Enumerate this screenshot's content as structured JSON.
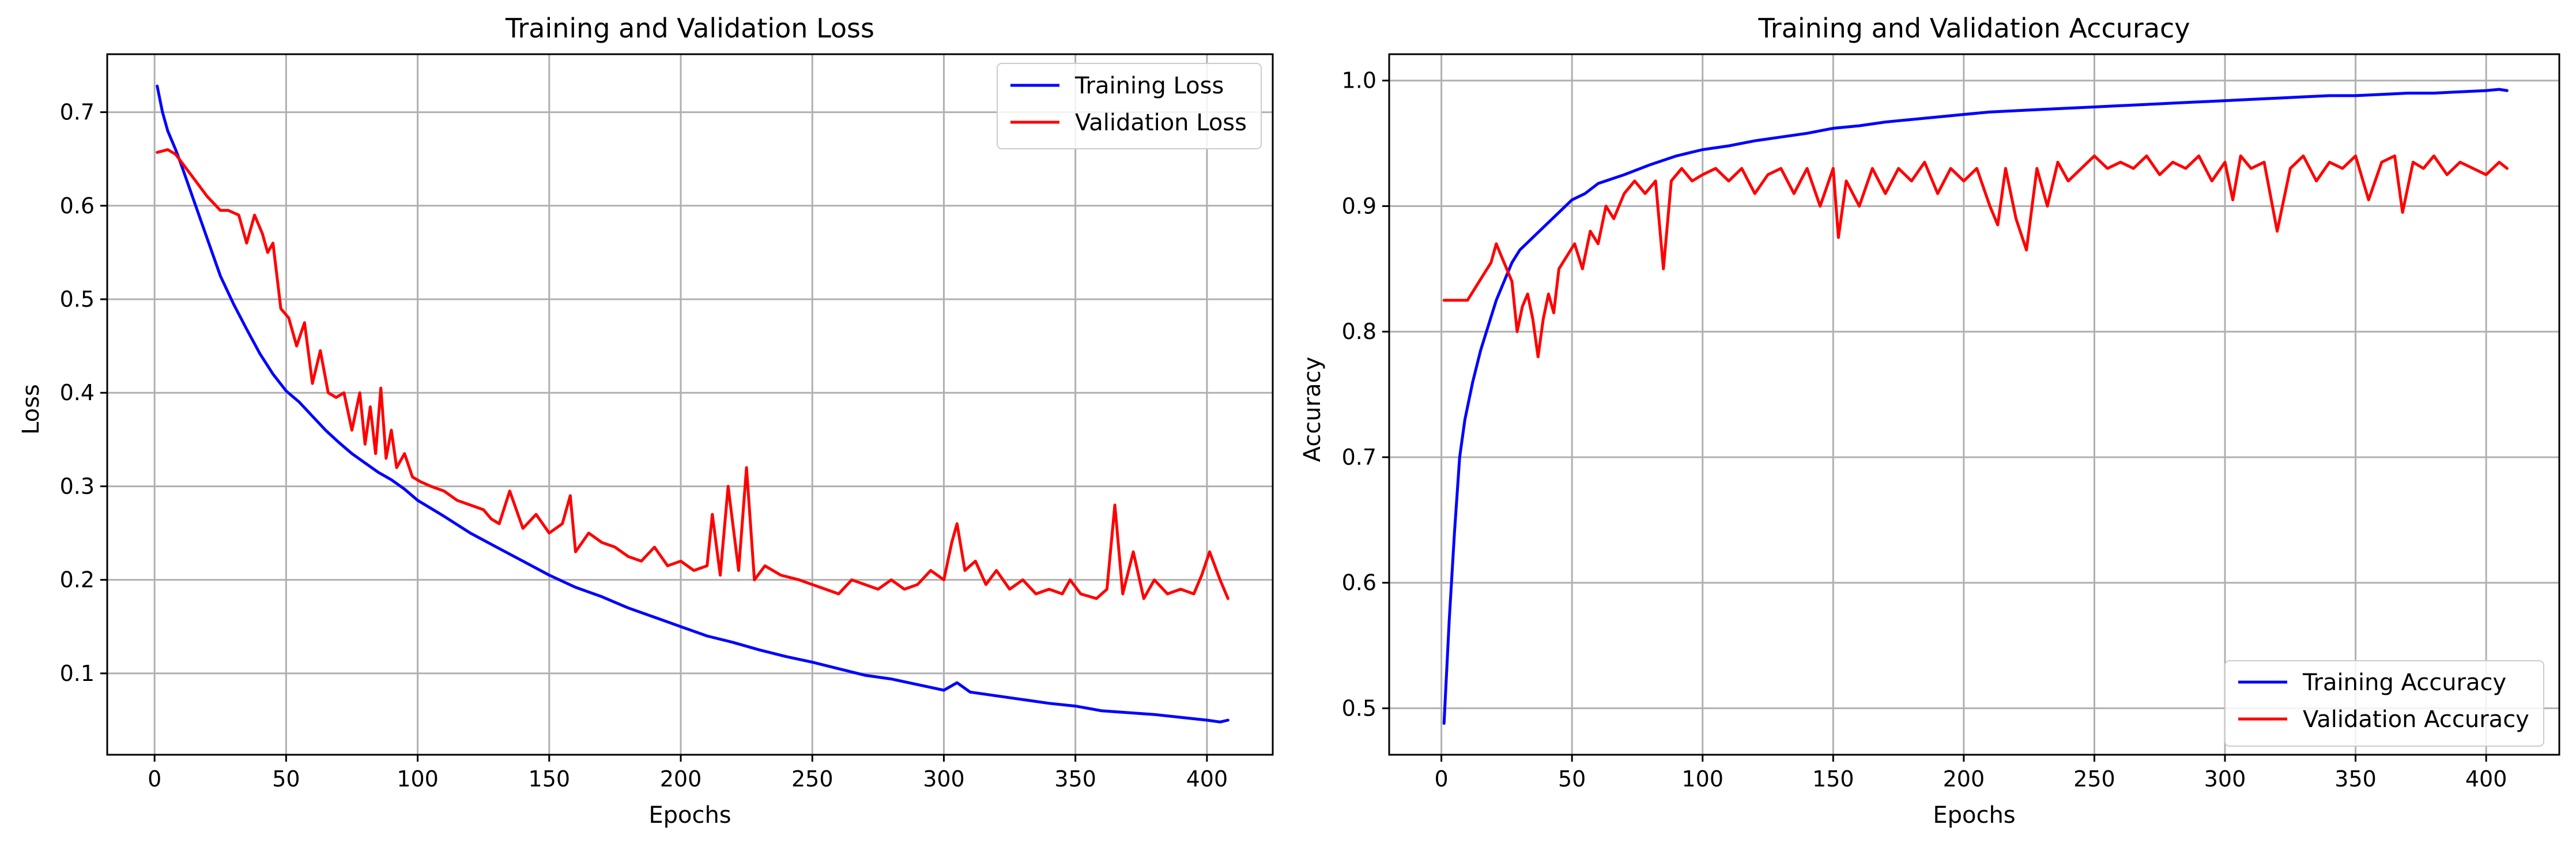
{
  "chart_data": [
    {
      "type": "line",
      "title": "Training and Validation Loss",
      "xlabel": "Epochs",
      "ylabel": "Loss",
      "xlim": [
        -18,
        425
      ],
      "ylim": [
        0.013,
        0.762
      ],
      "xticks": [
        0,
        50,
        100,
        150,
        200,
        250,
        300,
        350,
        400
      ],
      "yticks": [
        0.1,
        0.2,
        0.3,
        0.4,
        0.5,
        0.6,
        0.7
      ],
      "ytick_labels": [
        "0.1",
        "0.2",
        "0.3",
        "0.4",
        "0.5",
        "0.6",
        "0.7"
      ],
      "grid": true,
      "legend_position": "top-right",
      "series": [
        {
          "name": "Training Loss",
          "color": "#0000ff",
          "x": [
            1,
            3,
            5,
            8,
            10,
            15,
            20,
            25,
            30,
            35,
            40,
            45,
            50,
            55,
            60,
            65,
            70,
            75,
            80,
            85,
            90,
            95,
            100,
            110,
            120,
            130,
            140,
            150,
            160,
            170,
            180,
            190,
            200,
            210,
            220,
            230,
            240,
            250,
            260,
            270,
            280,
            290,
            300,
            305,
            310,
            320,
            330,
            340,
            350,
            360,
            370,
            380,
            390,
            400,
            405,
            408
          ],
          "y": [
            0.728,
            0.7,
            0.68,
            0.66,
            0.645,
            0.605,
            0.565,
            0.525,
            0.495,
            0.468,
            0.442,
            0.42,
            0.402,
            0.39,
            0.375,
            0.36,
            0.347,
            0.335,
            0.325,
            0.315,
            0.307,
            0.297,
            0.285,
            0.268,
            0.25,
            0.235,
            0.22,
            0.205,
            0.192,
            0.182,
            0.17,
            0.16,
            0.15,
            0.14,
            0.133,
            0.125,
            0.118,
            0.112,
            0.105,
            0.098,
            0.094,
            0.088,
            0.082,
            0.09,
            0.08,
            0.076,
            0.072,
            0.068,
            0.065,
            0.06,
            0.058,
            0.056,
            0.053,
            0.05,
            0.048,
            0.05
          ]
        },
        {
          "name": "Validation Loss",
          "color": "#ff0000",
          "x": [
            1,
            5,
            8,
            12,
            16,
            20,
            25,
            28,
            32,
            35,
            38,
            41,
            43,
            45,
            48,
            51,
            54,
            57,
            60,
            63,
            66,
            69,
            72,
            75,
            78,
            80,
            82,
            84,
            86,
            88,
            90,
            92,
            95,
            98,
            101,
            105,
            110,
            115,
            120,
            125,
            128,
            131,
            135,
            140,
            145,
            150,
            155,
            158,
            160,
            165,
            170,
            175,
            180,
            185,
            190,
            195,
            200,
            205,
            210,
            212,
            215,
            218,
            222,
            225,
            228,
            232,
            238,
            245,
            250,
            255,
            260,
            265,
            270,
            275,
            280,
            285,
            290,
            295,
            300,
            303,
            305,
            308,
            312,
            316,
            320,
            325,
            330,
            335,
            340,
            345,
            348,
            352,
            358,
            362,
            365,
            368,
            372,
            376,
            380,
            385,
            390,
            395,
            398,
            401,
            405,
            408
          ],
          "y": [
            0.657,
            0.66,
            0.655,
            0.64,
            0.625,
            0.61,
            0.595,
            0.595,
            0.59,
            0.56,
            0.59,
            0.57,
            0.55,
            0.56,
            0.49,
            0.48,
            0.45,
            0.475,
            0.41,
            0.445,
            0.4,
            0.395,
            0.4,
            0.36,
            0.4,
            0.345,
            0.385,
            0.335,
            0.405,
            0.33,
            0.36,
            0.32,
            0.335,
            0.31,
            0.305,
            0.3,
            0.295,
            0.285,
            0.28,
            0.275,
            0.265,
            0.26,
            0.295,
            0.255,
            0.27,
            0.25,
            0.26,
            0.29,
            0.23,
            0.25,
            0.24,
            0.235,
            0.225,
            0.22,
            0.235,
            0.215,
            0.22,
            0.21,
            0.215,
            0.27,
            0.205,
            0.3,
            0.21,
            0.32,
            0.2,
            0.215,
            0.205,
            0.2,
            0.195,
            0.19,
            0.185,
            0.2,
            0.195,
            0.19,
            0.2,
            0.19,
            0.195,
            0.21,
            0.2,
            0.24,
            0.26,
            0.21,
            0.22,
            0.195,
            0.21,
            0.19,
            0.2,
            0.185,
            0.19,
            0.185,
            0.2,
            0.185,
            0.18,
            0.19,
            0.28,
            0.185,
            0.23,
            0.18,
            0.2,
            0.185,
            0.19,
            0.185,
            0.205,
            0.23,
            0.2,
            0.18
          ]
        }
      ]
    },
    {
      "type": "line",
      "title": "Training and Validation Accuracy",
      "xlabel": "Epochs",
      "ylabel": "Accuracy",
      "xlim": [
        -20,
        428
      ],
      "ylim": [
        0.463,
        1.021
      ],
      "xticks": [
        0,
        50,
        100,
        150,
        200,
        250,
        300,
        350,
        400
      ],
      "yticks": [
        0.5,
        0.6,
        0.7,
        0.8,
        0.9,
        1.0
      ],
      "ytick_labels": [
        "0.5",
        "0.6",
        "0.7",
        "0.8",
        "0.9",
        "1.0"
      ],
      "grid": true,
      "legend_position": "bottom-right",
      "series": [
        {
          "name": "Training Accuracy",
          "color": "#0000ff",
          "x": [
            1,
            3,
            5,
            7,
            9,
            12,
            15,
            18,
            21,
            24,
            27,
            30,
            35,
            40,
            45,
            50,
            55,
            60,
            70,
            80,
            90,
            100,
            110,
            120,
            130,
            140,
            150,
            160,
            170,
            180,
            190,
            200,
            210,
            220,
            230,
            240,
            250,
            260,
            270,
            280,
            290,
            300,
            310,
            320,
            330,
            340,
            350,
            360,
            370,
            380,
            390,
            400,
            405,
            408
          ],
          "y": [
            0.488,
            0.57,
            0.64,
            0.7,
            0.73,
            0.76,
            0.785,
            0.805,
            0.825,
            0.84,
            0.855,
            0.865,
            0.875,
            0.885,
            0.895,
            0.905,
            0.91,
            0.918,
            0.925,
            0.933,
            0.94,
            0.945,
            0.948,
            0.952,
            0.955,
            0.958,
            0.962,
            0.964,
            0.967,
            0.969,
            0.971,
            0.973,
            0.975,
            0.976,
            0.977,
            0.978,
            0.979,
            0.98,
            0.981,
            0.982,
            0.983,
            0.984,
            0.985,
            0.986,
            0.987,
            0.988,
            0.988,
            0.989,
            0.99,
            0.99,
            0.991,
            0.992,
            0.993,
            0.992
          ]
        },
        {
          "name": "Validation Accuracy",
          "color": "#ff0000",
          "x": [
            1,
            5,
            10,
            13,
            16,
            19,
            21,
            23,
            25,
            27,
            29,
            31,
            33,
            35,
            37,
            39,
            41,
            43,
            45,
            48,
            51,
            54,
            57,
            60,
            63,
            66,
            70,
            74,
            78,
            82,
            85,
            88,
            92,
            96,
            100,
            105,
            110,
            115,
            120,
            125,
            130,
            135,
            140,
            145,
            150,
            152,
            155,
            160,
            165,
            170,
            175,
            180,
            185,
            190,
            195,
            200,
            205,
            210,
            213,
            216,
            220,
            224,
            228,
            232,
            236,
            240,
            245,
            250,
            255,
            260,
            265,
            270,
            275,
            280,
            285,
            290,
            295,
            300,
            303,
            306,
            310,
            315,
            320,
            325,
            330,
            335,
            340,
            345,
            350,
            355,
            360,
            365,
            368,
            372,
            376,
            380,
            385,
            390,
            395,
            400,
            405,
            408
          ],
          "y": [
            0.825,
            0.825,
            0.825,
            0.835,
            0.845,
            0.855,
            0.87,
            0.86,
            0.85,
            0.84,
            0.8,
            0.82,
            0.83,
            0.81,
            0.78,
            0.81,
            0.83,
            0.815,
            0.85,
            0.86,
            0.87,
            0.85,
            0.88,
            0.87,
            0.9,
            0.89,
            0.91,
            0.92,
            0.91,
            0.92,
            0.85,
            0.92,
            0.93,
            0.92,
            0.925,
            0.93,
            0.92,
            0.93,
            0.91,
            0.925,
            0.93,
            0.91,
            0.93,
            0.9,
            0.93,
            0.875,
            0.92,
            0.9,
            0.93,
            0.91,
            0.93,
            0.92,
            0.935,
            0.91,
            0.93,
            0.92,
            0.93,
            0.9,
            0.885,
            0.93,
            0.89,
            0.865,
            0.93,
            0.9,
            0.935,
            0.92,
            0.93,
            0.94,
            0.93,
            0.935,
            0.93,
            0.94,
            0.925,
            0.935,
            0.93,
            0.94,
            0.92,
            0.935,
            0.905,
            0.94,
            0.93,
            0.935,
            0.88,
            0.93,
            0.94,
            0.92,
            0.935,
            0.93,
            0.94,
            0.905,
            0.935,
            0.94,
            0.895,
            0.935,
            0.93,
            0.94,
            0.925,
            0.935,
            0.93,
            0.925,
            0.935,
            0.93
          ]
        }
      ]
    }
  ]
}
